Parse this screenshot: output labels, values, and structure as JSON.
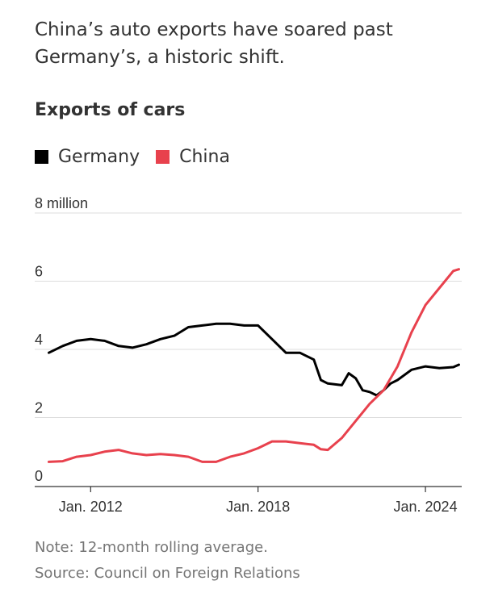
{
  "headline": "China’s auto exports have soared past Germany’s, a historic shift.",
  "chart_title": "Exports of cars",
  "legend": [
    {
      "label": "Germany",
      "color": "#000000"
    },
    {
      "label": "China",
      "color": "#e8414d"
    }
  ],
  "note": "Note: 12-month rolling average.",
  "source": "Source: Council on Foreign Relations",
  "chart_data": {
    "type": "line",
    "title": "Exports of cars",
    "y_unit": "million",
    "ylim": [
      0,
      8
    ],
    "yticks": [
      0,
      2,
      4,
      6,
      8
    ],
    "ytick_labels": [
      "0",
      "2",
      "4",
      "6",
      "8 million"
    ],
    "xlim": [
      2010.4,
      2025.3
    ],
    "xticks": [
      2012,
      2018,
      2024
    ],
    "xtick_labels": [
      "Jan. 2012",
      "Jan. 2018",
      "Jan. 2024"
    ],
    "grid": true,
    "legend_position": "top-left",
    "series": [
      {
        "name": "Germany",
        "color": "#000000",
        "x": [
          2010.5,
          2011.0,
          2011.5,
          2012.0,
          2012.5,
          2013.0,
          2013.5,
          2014.0,
          2014.5,
          2015.0,
          2015.5,
          2016.0,
          2016.5,
          2017.0,
          2017.5,
          2018.0,
          2018.5,
          2019.0,
          2019.5,
          2020.0,
          2020.25,
          2020.5,
          2021.0,
          2021.25,
          2021.5,
          2021.75,
          2022.0,
          2022.25,
          2022.5,
          2022.75,
          2023.0,
          2023.5,
          2024.0,
          2024.5,
          2025.0,
          2025.2
        ],
        "values": [
          3.9,
          4.1,
          4.25,
          4.3,
          4.25,
          4.1,
          4.05,
          4.15,
          4.3,
          4.4,
          4.65,
          4.7,
          4.75,
          4.75,
          4.7,
          4.7,
          4.3,
          3.9,
          3.9,
          3.7,
          3.1,
          3.0,
          2.95,
          3.3,
          3.15,
          2.8,
          2.75,
          2.65,
          2.8,
          3.0,
          3.1,
          3.4,
          3.5,
          3.45,
          3.48,
          3.55
        ]
      },
      {
        "name": "China",
        "color": "#e8414d",
        "x": [
          2010.5,
          2011.0,
          2011.5,
          2012.0,
          2012.5,
          2013.0,
          2013.5,
          2014.0,
          2014.5,
          2015.0,
          2015.5,
          2016.0,
          2016.5,
          2017.0,
          2017.5,
          2018.0,
          2018.5,
          2019.0,
          2019.5,
          2020.0,
          2020.25,
          2020.5,
          2021.0,
          2021.5,
          2022.0,
          2022.5,
          2023.0,
          2023.5,
          2024.0,
          2024.5,
          2025.0,
          2025.2
        ],
        "values": [
          0.7,
          0.72,
          0.85,
          0.9,
          1.0,
          1.05,
          0.95,
          0.9,
          0.93,
          0.9,
          0.85,
          0.7,
          0.7,
          0.85,
          0.95,
          1.1,
          1.3,
          1.3,
          1.25,
          1.2,
          1.07,
          1.05,
          1.4,
          1.9,
          2.4,
          2.8,
          3.5,
          4.5,
          5.3,
          5.8,
          6.3,
          6.35
        ]
      }
    ]
  }
}
